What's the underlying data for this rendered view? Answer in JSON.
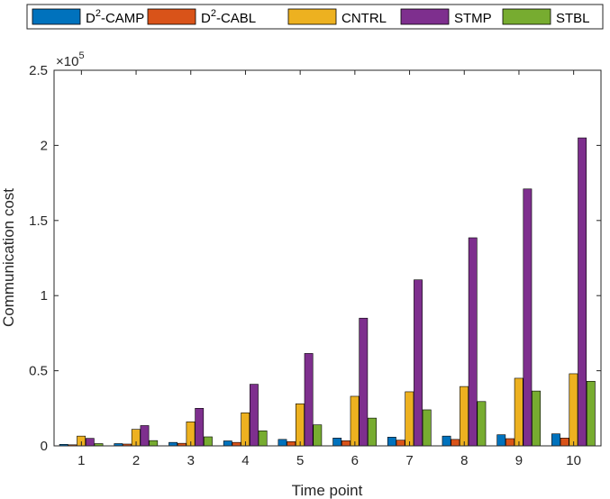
{
  "chart_data": {
    "type": "bar",
    "xlabel": "Time point",
    "ylabel": "Communication cost",
    "exponent_label": "×10",
    "exponent_power": "5",
    "categories": [
      "1",
      "2",
      "3",
      "4",
      "5",
      "6",
      "7",
      "8",
      "9",
      "10"
    ],
    "ylim": [
      0,
      250000
    ],
    "yticks": [
      0,
      50000,
      100000,
      150000,
      200000,
      250000
    ],
    "ytick_labels": [
      "0",
      "0.5",
      "1",
      "1.5",
      "2",
      "2.5"
    ],
    "legend_position": "top",
    "series": [
      {
        "name": "D²-CAMP",
        "legend_base": "D",
        "legend_sup": "2",
        "legend_rest": "-CAMP",
        "color": "#0072BD",
        "values": [
          1000,
          1500,
          2300,
          3300,
          4300,
          5200,
          5800,
          6500,
          7400,
          8000
        ]
      },
      {
        "name": "D²-CABL",
        "legend_base": "D",
        "legend_sup": "2",
        "legend_rest": "-CABL",
        "color": "#D95319",
        "values": [
          700,
          1200,
          1700,
          2300,
          2800,
          3400,
          3800,
          4300,
          4800,
          5200
        ]
      },
      {
        "name": "CNTRL",
        "legend_base": "CNTRL",
        "legend_sup": "",
        "legend_rest": "",
        "color": "#EDB120",
        "values": [
          6500,
          11000,
          16000,
          22000,
          28000,
          33000,
          36000,
          39500,
          45000,
          48000
        ]
      },
      {
        "name": "STMP",
        "legend_base": "STMP",
        "legend_sup": "",
        "legend_rest": "",
        "color": "#7E2F8E",
        "values": [
          5000,
          13500,
          25000,
          41000,
          61500,
          85000,
          110500,
          138500,
          171000,
          205000
        ]
      },
      {
        "name": "STBL",
        "legend_base": "STBL",
        "legend_sup": "",
        "legend_rest": "",
        "color": "#77AC30",
        "values": [
          1500,
          3500,
          6000,
          10000,
          14000,
          18500,
          24000,
          29500,
          36500,
          43000
        ]
      }
    ]
  }
}
